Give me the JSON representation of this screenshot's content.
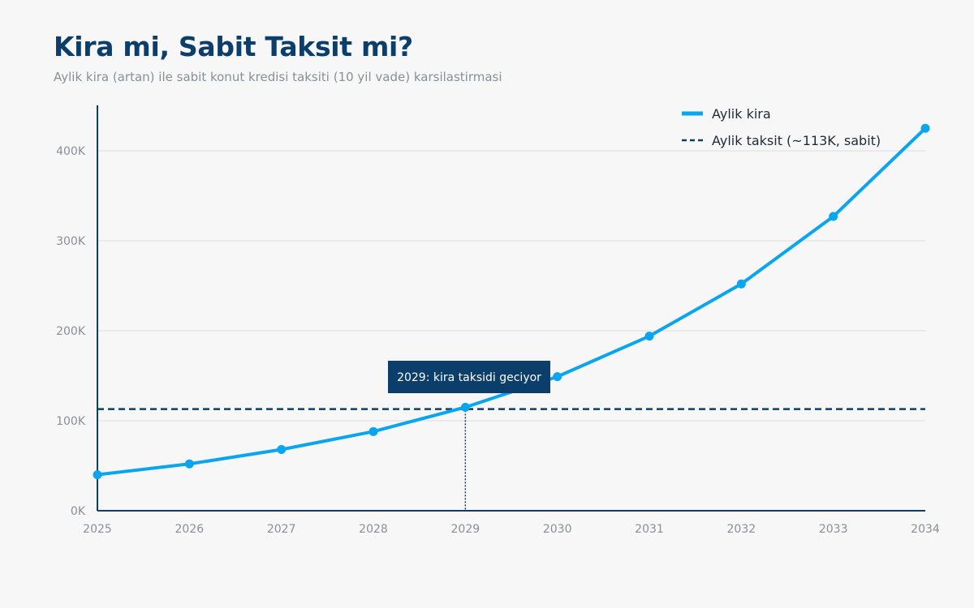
{
  "title": "Kira mi, Sabit Taksit mi?",
  "subtitle": "Aylik kira (artan) ile sabit konut kredisi taksiti (10 yil vade) karsilastirmasi",
  "colors": {
    "rent": "#0aa5ef",
    "installment": "#0c3e6b",
    "axis": "#0c3e6b",
    "grid": "#dddddd",
    "tick": "#8a8f96",
    "annotation_bg": "#0c3e6b",
    "annotation_text": "#ffffff"
  },
  "chart_data": {
    "type": "line",
    "x": [
      2025,
      2026,
      2027,
      2028,
      2029,
      2030,
      2031,
      2032,
      2033,
      2034
    ],
    "xlim": [
      2025,
      2034
    ],
    "ylim": [
      0,
      450000
    ],
    "y_ticks": [
      0,
      100000,
      200000,
      300000,
      400000
    ],
    "y_tick_labels": [
      "0K",
      "100K",
      "200K",
      "300K",
      "400K"
    ],
    "x_tick_labels": [
      "2025",
      "2026",
      "2027",
      "2028",
      "2029",
      "2030",
      "2031",
      "2032",
      "2033",
      "2034"
    ],
    "xlabel": "",
    "ylabel": "",
    "grid": true,
    "legend_position": "top-right",
    "series": [
      {
        "name": "Aylik kira",
        "style": "solid",
        "markers": true,
        "values": [
          40000,
          52000,
          68000,
          88000,
          115000,
          149000,
          194000,
          252000,
          327000,
          425000
        ]
      },
      {
        "name": "Aylik taksit (~113K, sabit)",
        "style": "dashed",
        "markers": false,
        "values": [
          113000,
          113000,
          113000,
          113000,
          113000,
          113000,
          113000,
          113000,
          113000,
          113000
        ]
      }
    ],
    "annotations": [
      {
        "x": 2029,
        "text": "2029: kira taksidi geciyor"
      }
    ]
  }
}
